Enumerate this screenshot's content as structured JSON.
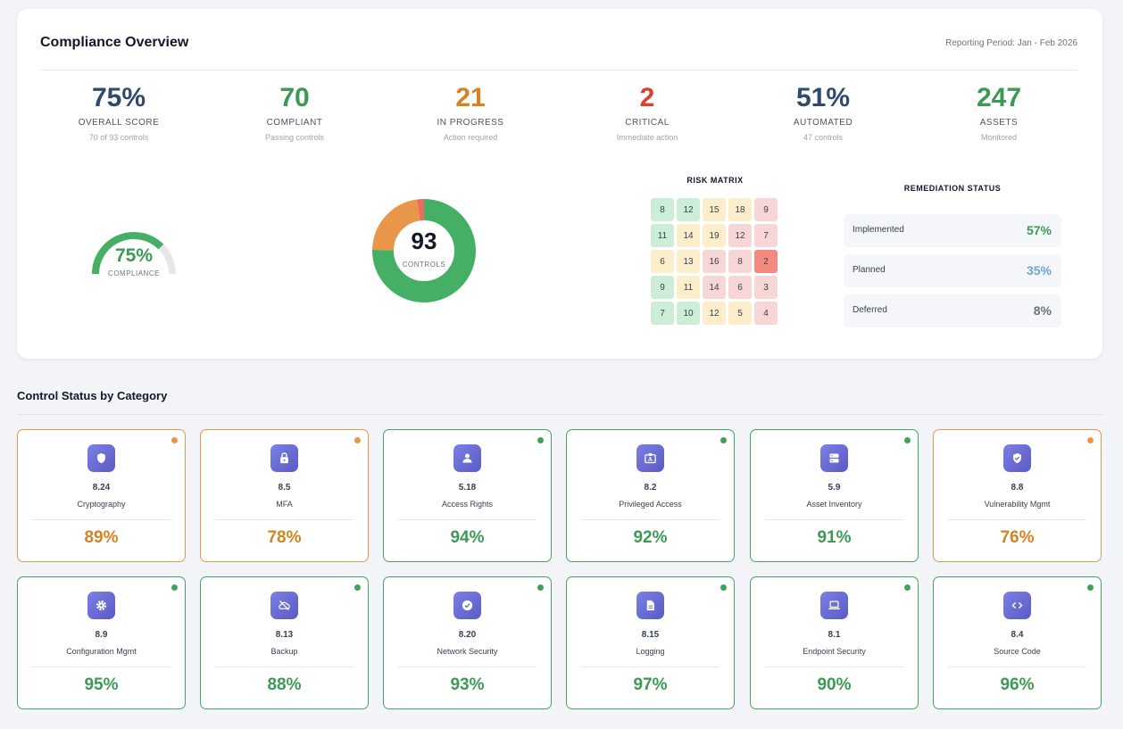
{
  "header": {
    "title": "Compliance Overview",
    "period": "Reporting Period: Jan - Feb 2026"
  },
  "kpis": [
    {
      "value": "75%",
      "label": "OVERALL SCORE",
      "sub": "70 of 93 controls",
      "color": "#2f4a6b"
    },
    {
      "value": "70",
      "label": "COMPLIANT",
      "sub": "Passing controls",
      "color": "#3d9a55"
    },
    {
      "value": "21",
      "label": "IN PROGRESS",
      "sub": "Action required",
      "color": "#d48322"
    },
    {
      "value": "2",
      "label": "CRITICAL",
      "sub": "Immediate action",
      "color": "#d9412f"
    },
    {
      "value": "51%",
      "label": "AUTOMATED",
      "sub": "47 controls",
      "color": "#2f4a6b"
    },
    {
      "value": "247",
      "label": "ASSETS",
      "sub": "Monitored",
      "color": "#3d9a55"
    }
  ],
  "gauge": {
    "value": "75%",
    "label": "COMPLIANCE",
    "fraction": 0.75
  },
  "donut": {
    "value": "93",
    "label": "CONTROLS",
    "segments": [
      {
        "value": 70,
        "color": "#45b065"
      },
      {
        "value": 21,
        "color": "#e8974a"
      },
      {
        "value": 2,
        "color": "#ef6b5e"
      }
    ]
  },
  "risk_matrix": {
    "title": "RISK MATRIX",
    "rows": [
      [
        {
          "v": "8",
          "c": "g"
        },
        {
          "v": "12",
          "c": "g"
        },
        {
          "v": "15",
          "c": "y"
        },
        {
          "v": "18",
          "c": "y"
        },
        {
          "v": "9",
          "c": "r"
        }
      ],
      [
        {
          "v": "11",
          "c": "g"
        },
        {
          "v": "14",
          "c": "y"
        },
        {
          "v": "19",
          "c": "y"
        },
        {
          "v": "12",
          "c": "r"
        },
        {
          "v": "7",
          "c": "r"
        }
      ],
      [
        {
          "v": "6",
          "c": "y"
        },
        {
          "v": "13",
          "c": "y"
        },
        {
          "v": "16",
          "c": "r"
        },
        {
          "v": "8",
          "c": "r"
        },
        {
          "v": "2",
          "c": "rr"
        }
      ],
      [
        {
          "v": "9",
          "c": "g"
        },
        {
          "v": "11",
          "c": "y"
        },
        {
          "v": "14",
          "c": "r"
        },
        {
          "v": "6",
          "c": "r"
        },
        {
          "v": "3",
          "c": "r"
        }
      ],
      [
        {
          "v": "7",
          "c": "g"
        },
        {
          "v": "10",
          "c": "g"
        },
        {
          "v": "12",
          "c": "y"
        },
        {
          "v": "5",
          "c": "y"
        },
        {
          "v": "4",
          "c": "r"
        }
      ]
    ]
  },
  "remediation": {
    "title": "REMEDIATION STATUS",
    "items": [
      {
        "label": "Implemented",
        "value": "57%",
        "color": "#3d9a55"
      },
      {
        "label": "Planned",
        "value": "35%",
        "color": "#6ea3d6"
      },
      {
        "label": "Deferred",
        "value": "8%",
        "color": "#6b7280"
      }
    ]
  },
  "categories": {
    "title": "Control Status by Category",
    "cards": [
      {
        "code": "8.24",
        "name": "Cryptography",
        "pct": "89%",
        "status": "warn",
        "icon": "shield-icon"
      },
      {
        "code": "8.5",
        "name": "MFA",
        "pct": "78%",
        "status": "warn",
        "icon": "lock-icon"
      },
      {
        "code": "5.18",
        "name": "Access Rights",
        "pct": "94%",
        "status": "ok",
        "icon": "user-icon"
      },
      {
        "code": "8.2",
        "name": "Privileged Access",
        "pct": "92%",
        "status": "ok",
        "icon": "id-card-icon"
      },
      {
        "code": "5.9",
        "name": "Asset Inventory",
        "pct": "91%",
        "status": "ok",
        "icon": "server-icon"
      },
      {
        "code": "8.8",
        "name": "Vulnerability Mgmt",
        "pct": "76%",
        "status": "warn",
        "icon": "shield-check-icon"
      },
      {
        "code": "8.9",
        "name": "Configuration Mgmt",
        "pct": "95%",
        "status": "ok",
        "icon": "gear-icon"
      },
      {
        "code": "8.13",
        "name": "Backup",
        "pct": "88%",
        "status": "ok",
        "icon": "cloud-off-icon"
      },
      {
        "code": "8.20",
        "name": "Network Security",
        "pct": "93%",
        "status": "ok",
        "icon": "check-circle-icon"
      },
      {
        "code": "8.15",
        "name": "Logging",
        "pct": "97%",
        "status": "ok",
        "icon": "document-icon"
      },
      {
        "code": "8.1",
        "name": "Endpoint Security",
        "pct": "90%",
        "status": "ok",
        "icon": "laptop-icon"
      },
      {
        "code": "8.4",
        "name": "Source Code",
        "pct": "96%",
        "status": "ok",
        "icon": "code-icon"
      }
    ]
  }
}
